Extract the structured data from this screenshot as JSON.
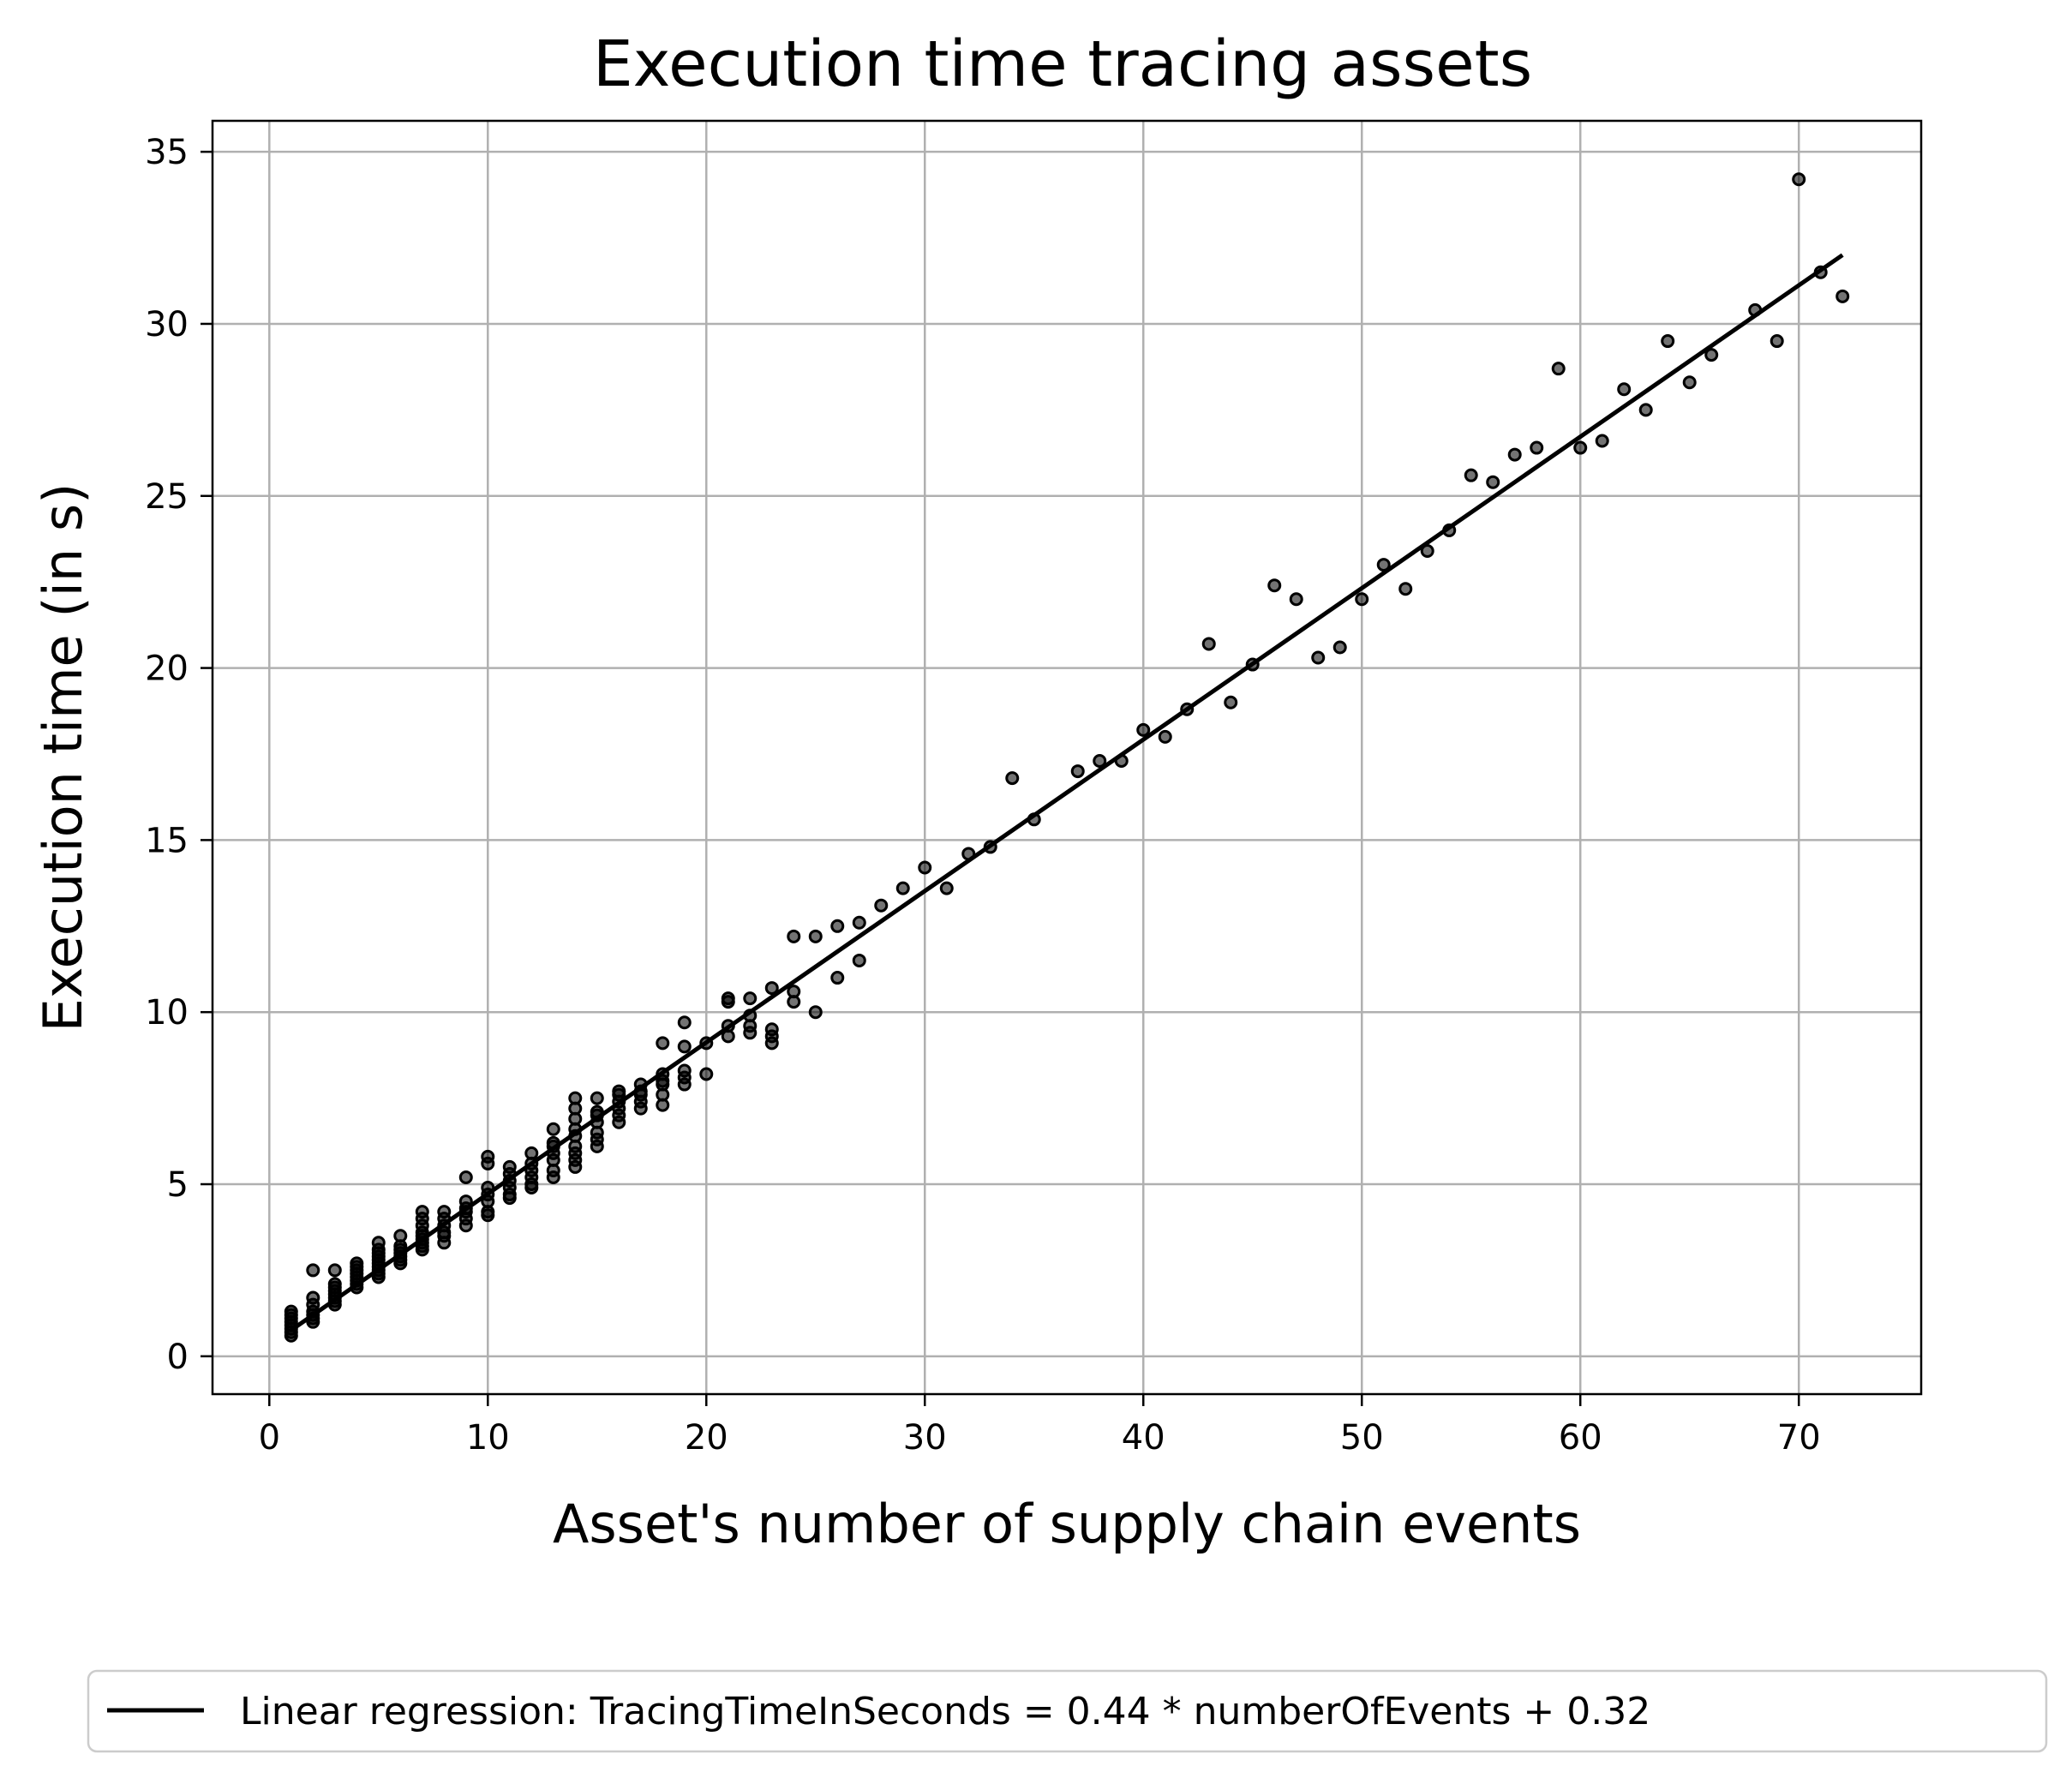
{
  "chart_data": {
    "type": "scatter",
    "title": "Execution time tracing assets",
    "xlabel": "Asset's number of supply chain events",
    "ylabel": "Execution time (in s)",
    "xlim": [
      -2.6,
      75.6
    ],
    "ylim": [
      -1.1,
      35.9
    ],
    "xticks": [
      0,
      10,
      20,
      30,
      40,
      50,
      60,
      70
    ],
    "yticks": [
      0,
      5,
      10,
      15,
      20,
      25,
      30,
      35
    ],
    "grid": true,
    "legend_position": "bottom-center, below plot",
    "colors": {
      "points": "#000000",
      "regression_line": "#000000",
      "grid": "#b0b0b0"
    },
    "regression": {
      "label": "Linear regression: TracingTimeInSeconds = 0.44 * numberOfEvents + 0.32",
      "slope": 0.44,
      "intercept": 0.32,
      "x_range": [
        1,
        72
      ]
    },
    "series": [
      {
        "points": [
          [
            1,
            0.6
          ],
          [
            1,
            0.7
          ],
          [
            1,
            0.8
          ],
          [
            1,
            0.9
          ],
          [
            1,
            1.0
          ],
          [
            1,
            1.1
          ],
          [
            1,
            1.2
          ],
          [
            1,
            1.3
          ],
          [
            2,
            1.0
          ],
          [
            2,
            1.1
          ],
          [
            2,
            1.2
          ],
          [
            2,
            1.3
          ],
          [
            2,
            1.5
          ],
          [
            2,
            1.7
          ],
          [
            2,
            2.5
          ],
          [
            3,
            1.5
          ],
          [
            3,
            1.6
          ],
          [
            3,
            1.7
          ],
          [
            3,
            1.8
          ],
          [
            3,
            1.9
          ],
          [
            3,
            2.0
          ],
          [
            3,
            2.1
          ],
          [
            3,
            2.5
          ],
          [
            4,
            2.0
          ],
          [
            4,
            2.1
          ],
          [
            4,
            2.2
          ],
          [
            4,
            2.3
          ],
          [
            4,
            2.4
          ],
          [
            4,
            2.5
          ],
          [
            4,
            2.6
          ],
          [
            4,
            2.7
          ],
          [
            5,
            2.3
          ],
          [
            5,
            2.4
          ],
          [
            5,
            2.5
          ],
          [
            5,
            2.6
          ],
          [
            5,
            2.7
          ],
          [
            5,
            2.8
          ],
          [
            5,
            2.9
          ],
          [
            5,
            3.0
          ],
          [
            5,
            3.1
          ],
          [
            5,
            3.3
          ],
          [
            6,
            2.7
          ],
          [
            6,
            2.8
          ],
          [
            6,
            2.9
          ],
          [
            6,
            3.0
          ],
          [
            6,
            3.1
          ],
          [
            6,
            3.2
          ],
          [
            6,
            3.5
          ],
          [
            7,
            3.1
          ],
          [
            7,
            3.2
          ],
          [
            7,
            3.3
          ],
          [
            7,
            3.4
          ],
          [
            7,
            3.5
          ],
          [
            7,
            3.6
          ],
          [
            7,
            3.8
          ],
          [
            7,
            4.0
          ],
          [
            7,
            4.2
          ],
          [
            8,
            3.3
          ],
          [
            8,
            3.5
          ],
          [
            8,
            3.6
          ],
          [
            8,
            3.8
          ],
          [
            8,
            4.0
          ],
          [
            8,
            4.2
          ],
          [
            9,
            3.8
          ],
          [
            9,
            4.0
          ],
          [
            9,
            4.2
          ],
          [
            9,
            4.3
          ],
          [
            9,
            4.5
          ],
          [
            9,
            5.2
          ],
          [
            10,
            4.1
          ],
          [
            10,
            4.2
          ],
          [
            10,
            4.5
          ],
          [
            10,
            4.7
          ],
          [
            10,
            4.9
          ],
          [
            10,
            5.6
          ],
          [
            10,
            5.8
          ],
          [
            11,
            4.6
          ],
          [
            11,
            4.7
          ],
          [
            11,
            4.9
          ],
          [
            11,
            5.1
          ],
          [
            11,
            5.3
          ],
          [
            11,
            5.5
          ],
          [
            12,
            4.9
          ],
          [
            12,
            5.0
          ],
          [
            12,
            5.2
          ],
          [
            12,
            5.4
          ],
          [
            12,
            5.6
          ],
          [
            12,
            5.9
          ],
          [
            13,
            5.2
          ],
          [
            13,
            5.4
          ],
          [
            13,
            5.7
          ],
          [
            13,
            5.9
          ],
          [
            13,
            6.1
          ],
          [
            13,
            6.2
          ],
          [
            13,
            6.6
          ],
          [
            14,
            5.5
          ],
          [
            14,
            5.7
          ],
          [
            14,
            5.9
          ],
          [
            14,
            6.1
          ],
          [
            14,
            6.4
          ],
          [
            14,
            6.6
          ],
          [
            14,
            6.9
          ],
          [
            14,
            7.2
          ],
          [
            14,
            7.5
          ],
          [
            15,
            6.1
          ],
          [
            15,
            6.3
          ],
          [
            15,
            6.5
          ],
          [
            15,
            6.8
          ],
          [
            15,
            7.0
          ],
          [
            15,
            7.1
          ],
          [
            15,
            7.5
          ],
          [
            16,
            6.8
          ],
          [
            16,
            7.0
          ],
          [
            16,
            7.2
          ],
          [
            16,
            7.4
          ],
          [
            16,
            7.6
          ],
          [
            16,
            7.7
          ],
          [
            17,
            7.2
          ],
          [
            17,
            7.4
          ],
          [
            17,
            7.6
          ],
          [
            17,
            7.7
          ],
          [
            17,
            7.9
          ],
          [
            18,
            7.3
          ],
          [
            18,
            7.6
          ],
          [
            18,
            7.9
          ],
          [
            18,
            8.0
          ],
          [
            18,
            8.2
          ],
          [
            18,
            9.1
          ],
          [
            19,
            7.9
          ],
          [
            19,
            8.1
          ],
          [
            19,
            8.3
          ],
          [
            19,
            9.0
          ],
          [
            19,
            9.7
          ],
          [
            20,
            8.2
          ],
          [
            20,
            9.1
          ],
          [
            21,
            9.3
          ],
          [
            21,
            9.6
          ],
          [
            21,
            10.3
          ],
          [
            21,
            10.4
          ],
          [
            22,
            9.4
          ],
          [
            22,
            9.6
          ],
          [
            22,
            9.9
          ],
          [
            22,
            10.4
          ],
          [
            23,
            9.1
          ],
          [
            23,
            9.3
          ],
          [
            23,
            9.5
          ],
          [
            23,
            10.7
          ],
          [
            24,
            10.3
          ],
          [
            24,
            10.6
          ],
          [
            24,
            12.2
          ],
          [
            25,
            10.0
          ],
          [
            25,
            12.2
          ],
          [
            26,
            11.0
          ],
          [
            26,
            12.5
          ],
          [
            27,
            11.5
          ],
          [
            27,
            12.6
          ],
          [
            28,
            13.1
          ],
          [
            29,
            13.6
          ],
          [
            30,
            14.2
          ],
          [
            31,
            13.6
          ],
          [
            32,
            14.6
          ],
          [
            33,
            14.8
          ],
          [
            34,
            16.8
          ],
          [
            35,
            15.6
          ],
          [
            37,
            17.0
          ],
          [
            38,
            17.3
          ],
          [
            39,
            17.3
          ],
          [
            40,
            18.2
          ],
          [
            41,
            18.0
          ],
          [
            42,
            18.8
          ],
          [
            43,
            20.7
          ],
          [
            44,
            19.0
          ],
          [
            45,
            20.1
          ],
          [
            46,
            22.4
          ],
          [
            47,
            22.0
          ],
          [
            48,
            20.3
          ],
          [
            49,
            20.6
          ],
          [
            50,
            22.0
          ],
          [
            51,
            23.0
          ],
          [
            52,
            22.3
          ],
          [
            53,
            23.4
          ],
          [
            54,
            24.0
          ],
          [
            55,
            25.6
          ],
          [
            56,
            25.4
          ],
          [
            57,
            26.2
          ],
          [
            58,
            26.4
          ],
          [
            59,
            28.7
          ],
          [
            60,
            26.4
          ],
          [
            61,
            26.6
          ],
          [
            62,
            28.1
          ],
          [
            63,
            27.5
          ],
          [
            64,
            29.5
          ],
          [
            65,
            28.3
          ],
          [
            66,
            29.1
          ],
          [
            68,
            30.4
          ],
          [
            69,
            29.5
          ],
          [
            70,
            34.2
          ],
          [
            71,
            31.5
          ],
          [
            72,
            30.8
          ]
        ]
      }
    ]
  }
}
